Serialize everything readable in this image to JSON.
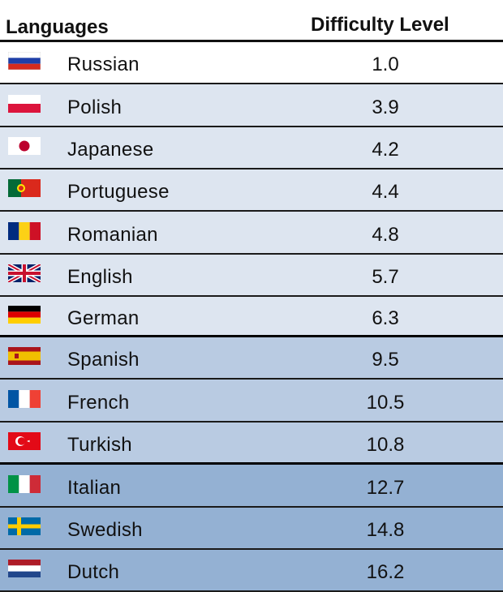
{
  "header": {
    "languages_label": "Languages",
    "difficulty_label": "Difficulty Level"
  },
  "rows": [
    {
      "language": "Russian",
      "difficulty": "1.0",
      "flag": "russia-flag-icon",
      "color": "#ffffff"
    },
    {
      "language": "Polish",
      "difficulty": "3.9",
      "flag": "poland-flag-icon",
      "color": "#dde5f0"
    },
    {
      "language": "Japanese",
      "difficulty": "4.2",
      "flag": "japan-flag-icon",
      "color": "#dde5f0"
    },
    {
      "language": "Portuguese",
      "difficulty": "4.4",
      "flag": "portugal-flag-icon",
      "color": "#dde5f0"
    },
    {
      "language": "Romanian",
      "difficulty": "4.8",
      "flag": "romania-flag-icon",
      "color": "#dde5f0"
    },
    {
      "language": "English",
      "difficulty": "5.7",
      "flag": "uk-flag-icon",
      "color": "#dde5f0"
    },
    {
      "language": "German",
      "difficulty": "6.3",
      "flag": "germany-flag-icon",
      "color": "#dde5f0"
    },
    {
      "language": "Spanish",
      "difficulty": "9.5",
      "flag": "spain-flag-icon",
      "color": "#b9cbe2"
    },
    {
      "language": "French",
      "difficulty": "10.5",
      "flag": "france-flag-icon",
      "color": "#b9cbe2"
    },
    {
      "language": "Turkish",
      "difficulty": "10.8",
      "flag": "turkey-flag-icon",
      "color": "#b9cbe2"
    },
    {
      "language": "Italian",
      "difficulty": "12.7",
      "flag": "italy-flag-icon",
      "color": "#94b1d3"
    },
    {
      "language": "Swedish",
      "difficulty": "14.8",
      "flag": "sweden-flag-icon",
      "color": "#94b1d3"
    },
    {
      "language": "Dutch",
      "difficulty": "16.2",
      "flag": "netherlands-flag-icon",
      "color": "#94b1d3"
    }
  ]
}
